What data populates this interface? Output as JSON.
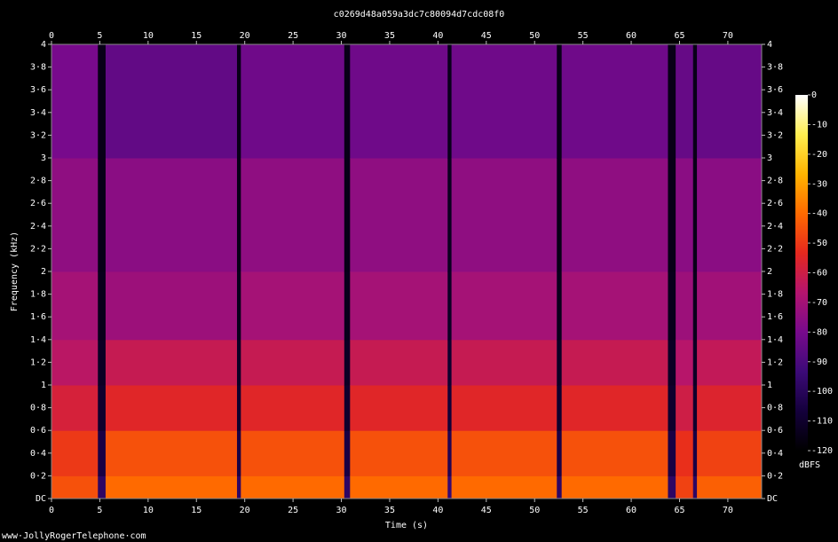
{
  "chart_data": {
    "type": "heatmap",
    "title": "c0269d48a059a3dc7c80094d7cdc08f0",
    "x_label": "Time (s)",
    "y_label": "Frequency (kHz)",
    "footer": "www·JollyRogerTelephone·com",
    "x_edges": [
      0,
      4.8,
      5.6,
      19.2,
      19.6,
      30.3,
      30.9,
      41.0,
      41.4,
      52.3,
      52.8,
      63.8,
      64.6,
      66.4,
      66.8,
      73.5
    ],
    "y_edges": [
      0,
      0.2,
      0.6,
      1.0,
      1.4,
      2.0,
      3.0,
      4.0
    ],
    "values": [
      [
        -45,
        -50,
        -58,
        -65,
        -70,
        -75,
        -80
      ],
      [
        -98,
        -105,
        -110,
        -112,
        -114,
        -115,
        -115
      ],
      [
        -40,
        -45,
        -55,
        -62,
        -72,
        -76,
        -85
      ],
      [
        -98,
        -105,
        -110,
        -112,
        -114,
        -115,
        -115
      ],
      [
        -40,
        -45,
        -55,
        -62,
        -70,
        -75,
        -82
      ],
      [
        -98,
        -105,
        -110,
        -112,
        -114,
        -115,
        -115
      ],
      [
        -40,
        -45,
        -55,
        -62,
        -70,
        -75,
        -82
      ],
      [
        -95,
        -102,
        -108,
        -110,
        -112,
        -113,
        -114
      ],
      [
        -40,
        -45,
        -55,
        -62,
        -70,
        -75,
        -82
      ],
      [
        -98,
        -105,
        -110,
        -112,
        -114,
        -115,
        -115
      ],
      [
        -40,
        -45,
        -55,
        -62,
        -70,
        -75,
        -82
      ],
      [
        -98,
        -105,
        -110,
        -112,
        -114,
        -115,
        -115
      ],
      [
        -48,
        -52,
        -60,
        -66,
        -72,
        -76,
        -84
      ],
      [
        -98,
        -105,
        -110,
        -112,
        -114,
        -115,
        -115
      ],
      [
        -42,
        -48,
        -56,
        -63,
        -71,
        -76,
        -84
      ]
    ],
    "xlim": [
      0,
      73.5
    ],
    "xticks": [
      0,
      5,
      10,
      15,
      20,
      25,
      30,
      35,
      40,
      45,
      50,
      55,
      60,
      65,
      70
    ],
    "ylim": [
      0,
      4
    ],
    "yticks": [
      {
        "value": 0,
        "label": "DC"
      },
      {
        "value": 0.2,
        "label": "0·2"
      },
      {
        "value": 0.4,
        "label": "0·4"
      },
      {
        "value": 0.6,
        "label": "0·6"
      },
      {
        "value": 0.8,
        "label": "0·8"
      },
      1,
      {
        "value": 1.2,
        "label": "1·2"
      },
      {
        "value": 1.4,
        "label": "1·4"
      },
      {
        "value": 1.6,
        "label": "1·6"
      },
      {
        "value": 1.8,
        "label": "1·8"
      },
      2,
      {
        "value": 2.2,
        "label": "2·2"
      },
      {
        "value": 2.4,
        "label": "2·4"
      },
      {
        "value": 2.6,
        "label": "2·6"
      },
      {
        "value": 2.8,
        "label": "2·8"
      },
      3,
      {
        "value": 3.2,
        "label": "3·2"
      },
      {
        "value": 3.4,
        "label": "3·4"
      },
      {
        "value": 3.6,
        "label": "3·6"
      },
      {
        "value": 3.8,
        "label": "3·8"
      },
      4
    ],
    "colorbar_label": "dBFS",
    "clim": [
      -120,
      0
    ],
    "cticks": [
      0,
      -10,
      -20,
      -30,
      -40,
      -50,
      -60,
      -70,
      -80,
      -90,
      -100,
      -110,
      -120
    ],
    "colormap": [
      "#000000",
      "#14003c",
      "#3c0a78",
      "#780a8c",
      "#b4146e",
      "#e6281e",
      "#ff6a00",
      "#ffb400",
      "#ffee50",
      "#ffffff"
    ]
  }
}
